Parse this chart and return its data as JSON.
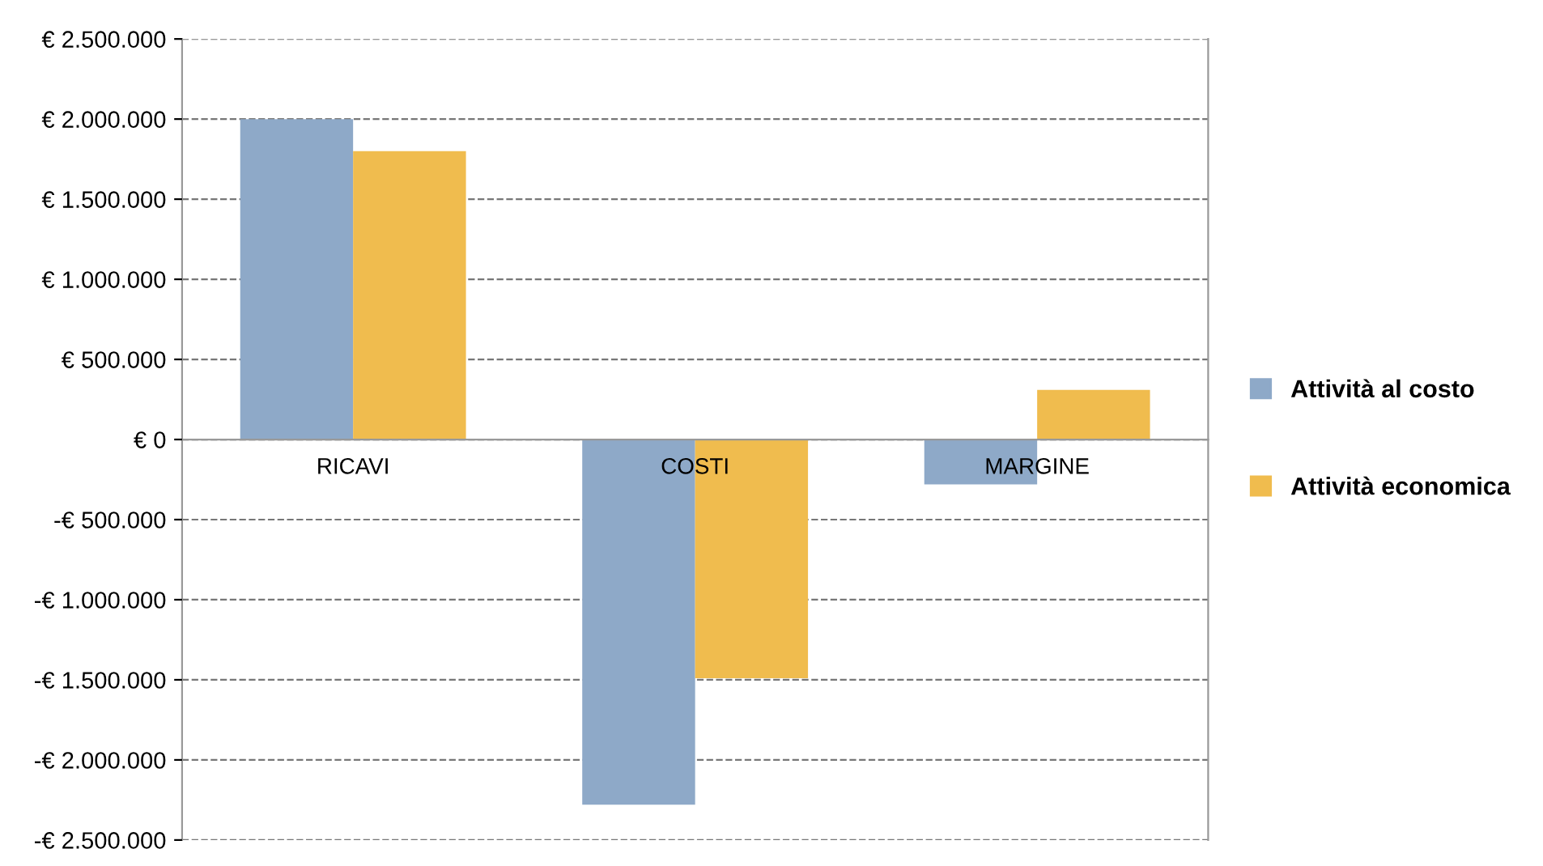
{
  "chart_data": {
    "type": "bar",
    "categories": [
      "RICAVI",
      "COSTI",
      "MARGINE"
    ],
    "series": [
      {
        "name": "Attività al costo",
        "color": "#8ea9c8",
        "values": [
          2000000,
          -2280000,
          -280000
        ]
      },
      {
        "name": "Attività economica",
        "color": "#f0bc4e",
        "values": [
          1800000,
          -1490000,
          310000
        ]
      }
    ],
    "ylim": [
      -2500000,
      2500000
    ],
    "yticks": [
      {
        "value": -2500000,
        "label": "-€ 2.500.000"
      },
      {
        "value": -2000000,
        "label": "-€ 2.000.000"
      },
      {
        "value": -1500000,
        "label": "-€ 1.500.000"
      },
      {
        "value": -1000000,
        "label": "-€ 1.000.000"
      },
      {
        "value": -500000,
        "label": "-€ 500.000"
      },
      {
        "value": 0,
        "label": "€ 0"
      },
      {
        "value": 500000,
        "label": "€ 500.000"
      },
      {
        "value": 1000000,
        "label": "€ 1.000.000"
      },
      {
        "value": 1500000,
        "label": "€ 1.500.000"
      },
      {
        "value": 2000000,
        "label": "€ 2.000.000"
      },
      {
        "value": 2500000,
        "label": "€ 2.500.000"
      }
    ],
    "grid": "y",
    "legend": "right"
  }
}
